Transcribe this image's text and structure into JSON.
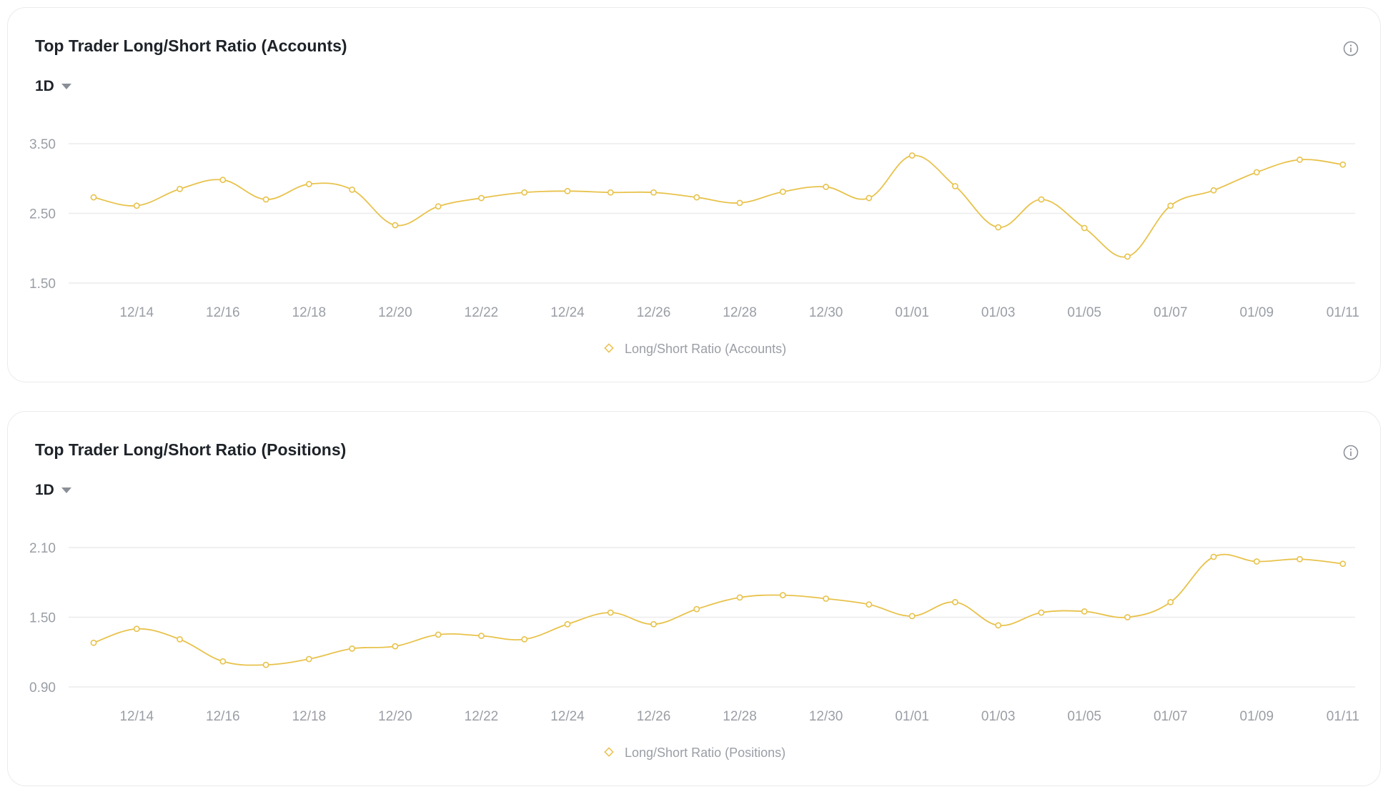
{
  "colors": {
    "line": "#E8C24B",
    "grid": "#ececec",
    "axis_text": "#9a9ea5",
    "title": "#1e2329"
  },
  "chart_data": [
    {
      "type": "line",
      "title": "Top Trader Long/Short Ratio (Accounts)",
      "interval": "1D",
      "x": [
        "12/13",
        "12/14",
        "12/15",
        "12/16",
        "12/17",
        "12/18",
        "12/19",
        "12/20",
        "12/21",
        "12/22",
        "12/23",
        "12/24",
        "12/25",
        "12/26",
        "12/27",
        "12/28",
        "12/29",
        "12/30",
        "12/31",
        "01/01",
        "01/02",
        "01/03",
        "01/04",
        "01/05",
        "01/06",
        "01/07",
        "01/08",
        "01/09",
        "01/10",
        "01/11"
      ],
      "x_tick_labels": [
        "12/14",
        "12/16",
        "12/18",
        "12/20",
        "12/22",
        "12/24",
        "12/26",
        "12/28",
        "12/30",
        "01/01",
        "01/03",
        "01/05",
        "01/07",
        "01/09",
        "01/11"
      ],
      "y_tick_labels": [
        "3.50",
        "2.50",
        "1.50"
      ],
      "ylim": [
        1.5,
        3.5
      ],
      "grid": true,
      "legend_position": "bottom-center",
      "series": [
        {
          "name": "Long/Short Ratio (Accounts)",
          "values": [
            2.73,
            2.61,
            2.85,
            2.98,
            2.7,
            2.92,
            2.84,
            2.33,
            2.6,
            2.72,
            2.8,
            2.82,
            2.8,
            2.8,
            2.73,
            2.65,
            2.81,
            2.88,
            2.72,
            3.33,
            2.89,
            2.3,
            2.7,
            2.29,
            1.88,
            2.61,
            2.83,
            3.09,
            3.27,
            3.2
          ]
        }
      ]
    },
    {
      "type": "line",
      "title": "Top Trader Long/Short Ratio (Positions)",
      "interval": "1D",
      "x": [
        "12/13",
        "12/14",
        "12/15",
        "12/16",
        "12/17",
        "12/18",
        "12/19",
        "12/20",
        "12/21",
        "12/22",
        "12/23",
        "12/24",
        "12/25",
        "12/26",
        "12/27",
        "12/28",
        "12/29",
        "12/30",
        "12/31",
        "01/01",
        "01/02",
        "01/03",
        "01/04",
        "01/05",
        "01/06",
        "01/07",
        "01/08",
        "01/09",
        "01/10",
        "01/11"
      ],
      "x_tick_labels": [
        "12/14",
        "12/16",
        "12/18",
        "12/20",
        "12/22",
        "12/24",
        "12/26",
        "12/28",
        "12/30",
        "01/01",
        "01/03",
        "01/05",
        "01/07",
        "01/09",
        "01/11"
      ],
      "y_tick_labels": [
        "2.10",
        "1.50",
        "0.90"
      ],
      "ylim": [
        0.9,
        2.1
      ],
      "grid": true,
      "legend_position": "bottom-center",
      "series": [
        {
          "name": "Long/Short Ratio (Positions)",
          "values": [
            1.28,
            1.4,
            1.31,
            1.12,
            1.09,
            1.14,
            1.23,
            1.25,
            1.35,
            1.34,
            1.31,
            1.44,
            1.54,
            1.44,
            1.57,
            1.67,
            1.69,
            1.66,
            1.61,
            1.51,
            1.63,
            1.43,
            1.54,
            1.55,
            1.5,
            1.63,
            2.02,
            1.98,
            2.0,
            1.96
          ]
        }
      ]
    }
  ]
}
